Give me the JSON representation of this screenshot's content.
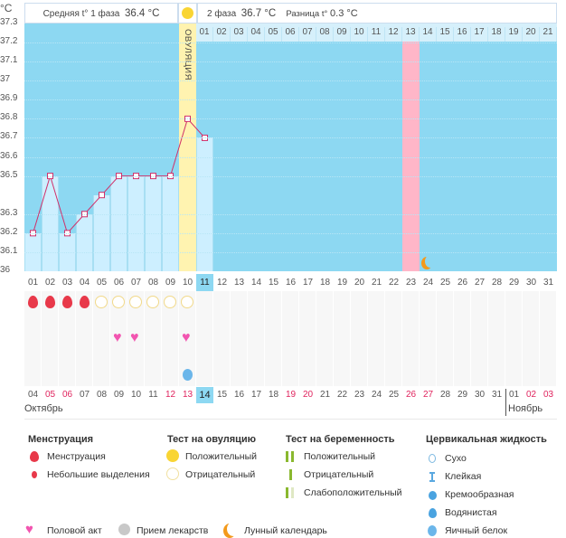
{
  "y_axis": {
    "unit": "°C",
    "ticks": [
      "37.3",
      "37.2",
      "37.1",
      "37",
      "36.9",
      "36.8",
      "36.7",
      "36.6",
      "36.5",
      "36.3",
      "36.2",
      "36.1",
      "36"
    ],
    "tick_values": [
      37.3,
      37.2,
      37.1,
      37.0,
      36.9,
      36.8,
      36.7,
      36.6,
      36.5,
      36.3,
      36.2,
      36.1,
      36.0
    ]
  },
  "header": {
    "phase1_label": "Средняя t° 1 фаза",
    "phase1_value": "36.4 °C",
    "phase2_label": "2 фаза",
    "phase2_value": "36.7 °C",
    "diff_label": "Разница t°",
    "diff_value": "0.3 °C"
  },
  "ovulation_label": "ОВУЛЯЦИЯ",
  "phase2_days": [
    "01",
    "02",
    "03",
    "04",
    "05",
    "06",
    "07",
    "08",
    "09",
    "10",
    "11",
    "12",
    "13",
    "14",
    "15",
    "16",
    "17",
    "18",
    "19",
    "20",
    "21"
  ],
  "cycle_days": [
    "01",
    "02",
    "03",
    "04",
    "05",
    "06",
    "07",
    "08",
    "09",
    "10",
    "11",
    "12",
    "13",
    "14",
    "15",
    "16",
    "17",
    "18",
    "19",
    "20",
    "21",
    "22",
    "23",
    "24",
    "25",
    "26",
    "27",
    "28",
    "29",
    "30",
    "31"
  ],
  "temperatures": [
    36.2,
    36.5,
    36.2,
    36.3,
    36.4,
    36.5,
    36.5,
    36.5,
    36.5,
    36.8,
    36.7
  ],
  "current_cycle_day": "11",
  "ovulation_day": 10,
  "highlight_day": 23,
  "moon_day": 24,
  "menstruation_days": [
    1,
    2,
    3,
    4
  ],
  "ovulation_test_negative_days": [
    5,
    6,
    7,
    8,
    9,
    10
  ],
  "intercourse_days": [
    6,
    7,
    10
  ],
  "egg_white_days": [
    10
  ],
  "calendar_dates": [
    {
      "d": "04"
    },
    {
      "d": "05",
      "w": true
    },
    {
      "d": "06",
      "w": true
    },
    {
      "d": "07"
    },
    {
      "d": "08"
    },
    {
      "d": "09"
    },
    {
      "d": "10"
    },
    {
      "d": "11"
    },
    {
      "d": "12",
      "w": true
    },
    {
      "d": "13",
      "w": true
    },
    {
      "d": "14",
      "today": true
    },
    {
      "d": "15"
    },
    {
      "d": "16"
    },
    {
      "d": "17"
    },
    {
      "d": "18"
    },
    {
      "d": "19",
      "w": true
    },
    {
      "d": "20",
      "w": true
    },
    {
      "d": "21"
    },
    {
      "d": "22"
    },
    {
      "d": "23"
    },
    {
      "d": "24"
    },
    {
      "d": "25"
    },
    {
      "d": "26",
      "w": true
    },
    {
      "d": "27",
      "w": true
    },
    {
      "d": "28"
    },
    {
      "d": "29"
    },
    {
      "d": "30"
    },
    {
      "d": "31"
    },
    {
      "d": "01"
    },
    {
      "d": "02",
      "w": true
    },
    {
      "d": "03",
      "w": true
    }
  ],
  "months": {
    "first": "Октябрь",
    "second": "Ноябрь"
  },
  "colors": {
    "chart_bg": "#8dd8f2",
    "bar": "#cdefff",
    "ovulation": "#fff3b0",
    "highlight": "#ffb6c8",
    "line": "#d0306a",
    "weekend": "#e0245e"
  },
  "legend": {
    "menstruation": {
      "title": "Менструация",
      "items": [
        "Менструация",
        "Небольшие выделения"
      ]
    },
    "ovulation_test": {
      "title": "Тест на овуляцию",
      "items": [
        "Положительный",
        "Отрицательный"
      ]
    },
    "pregnancy_test": {
      "title": "Тест на беременность",
      "items": [
        "Положительный",
        "Отрицательный",
        "Слабоположительный"
      ]
    },
    "cervical": {
      "title": "Цервикальная жидкость",
      "items": [
        "Сухо",
        "Клейкая",
        "Кремообразная",
        "Водянистая",
        "Яичный белок"
      ]
    },
    "other": [
      "Половой акт",
      "Прием лекарств",
      "Лунный календарь"
    ]
  }
}
